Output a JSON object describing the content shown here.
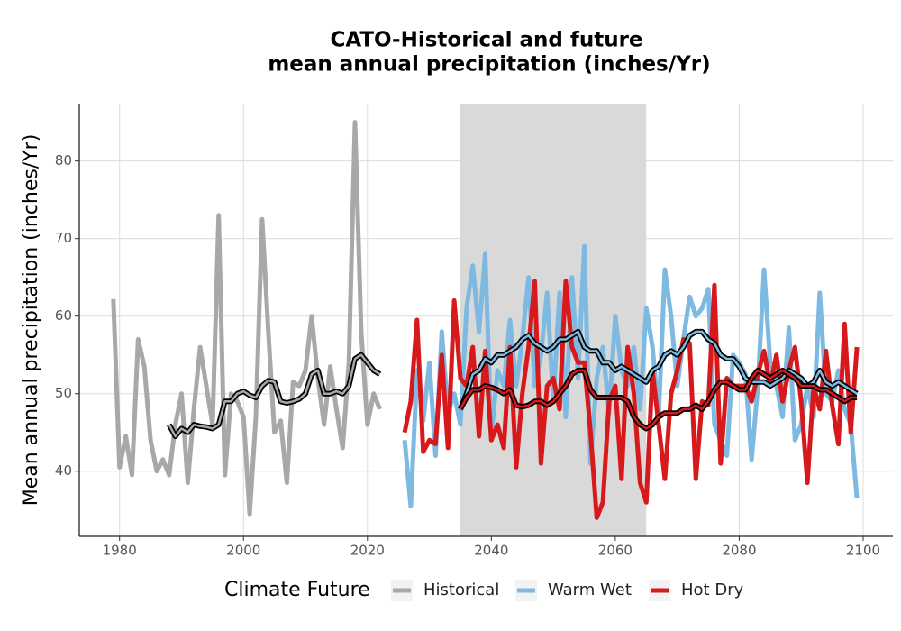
{
  "chart_data": {
    "type": "line",
    "title": [
      "CATO-Historical and future",
      "mean annual precipitation (inches/Yr)"
    ],
    "y_label": "Mean annual precipitation (inches/Yr)",
    "legend_title": "Climate Future",
    "xlim": [
      1973.5,
      2104.8
    ],
    "ylim": [
      31.6,
      87.4
    ],
    "xticks": [
      1980,
      2000,
      2020,
      2040,
      2060,
      2080,
      2100
    ],
    "yticks": [
      40,
      50,
      60,
      70,
      80
    ],
    "grid": true,
    "shade": [
      2035,
      2065
    ],
    "series": [
      {
        "name": "Historical",
        "color": "#a8a8a8",
        "x": [
          1979,
          1980,
          1981,
          1982,
          1983,
          1984,
          1985,
          1986,
          1987,
          1988,
          1989,
          1990,
          1991,
          1992,
          1993,
          1994,
          1995,
          1996,
          1997,
          1998,
          1999,
          2000,
          2001,
          2002,
          2003,
          2004,
          2005,
          2006,
          2007,
          2008,
          2009,
          2010,
          2011,
          2012,
          2013,
          2014,
          2015,
          2016,
          2017,
          2018,
          2019,
          2020,
          2021,
          2022
        ],
        "values": [
          62.2,
          40.5,
          44.5,
          39.5,
          57,
          53.5,
          44,
          40,
          41.5,
          39.5,
          46,
          50,
          38.5,
          48,
          56,
          51,
          46,
          73,
          39.5,
          50,
          49,
          47,
          34.5,
          47,
          72.5,
          58,
          45,
          46.5,
          38.5,
          51.5,
          51,
          53,
          60,
          52,
          46,
          53.5,
          48,
          43,
          54,
          85,
          58,
          46,
          50,
          48
        ],
        "rolling": [
          null,
          null,
          null,
          null,
          null,
          null,
          null,
          null,
          null,
          46,
          44.5,
          45.5,
          45,
          46,
          45.8,
          45.7,
          45.5,
          46,
          49,
          49,
          50,
          50.3,
          49.8,
          49.5,
          51,
          51.7,
          51.5,
          49,
          48.8,
          49,
          49.3,
          50,
          52.5,
          53,
          50,
          50,
          50.3,
          50,
          51,
          54.5,
          55,
          54,
          53,
          52.5
        ]
      },
      {
        "name": "Warm Wet",
        "color": "#7db9e0",
        "x": [
          2026,
          2027,
          2028,
          2029,
          2030,
          2031,
          2032,
          2033,
          2034,
          2035,
          2036,
          2037,
          2038,
          2039,
          2040,
          2041,
          2042,
          2043,
          2044,
          2045,
          2046,
          2047,
          2048,
          2049,
          2050,
          2051,
          2052,
          2053,
          2054,
          2055,
          2056,
          2057,
          2058,
          2059,
          2060,
          2061,
          2062,
          2063,
          2064,
          2065,
          2066,
          2067,
          2068,
          2069,
          2070,
          2071,
          2072,
          2073,
          2074,
          2075,
          2076,
          2077,
          2078,
          2079,
          2080,
          2081,
          2082,
          2083,
          2084,
          2085,
          2086,
          2087,
          2088,
          2089,
          2090,
          2091,
          2092,
          2093,
          2094,
          2095,
          2096,
          2097,
          2098,
          2099
        ],
        "values": [
          44,
          35.5,
          53,
          46.5,
          54,
          42,
          58,
          47.5,
          50,
          46,
          61,
          66.5,
          58,
          68,
          44.5,
          53,
          51,
          59.5,
          51,
          57,
          65,
          51,
          55,
          63,
          49,
          63,
          47,
          65,
          52,
          69,
          41,
          52,
          56,
          47.5,
          60,
          53,
          51,
          56,
          48,
          61,
          56,
          47,
          66,
          60,
          51,
          57,
          62.5,
          60,
          61,
          63.5,
          46,
          44,
          42,
          55,
          54,
          52.5,
          41.5,
          51,
          66,
          54,
          51,
          47,
          58.5,
          44,
          46,
          51,
          47,
          63,
          50,
          49,
          53,
          48,
          46,
          36.5
        ],
        "rolling": [
          null,
          null,
          null,
          null,
          null,
          null,
          null,
          null,
          null,
          48,
          50,
          52.5,
          53,
          54.5,
          54,
          55,
          55,
          55.5,
          56,
          57,
          57.5,
          56.5,
          56,
          55.5,
          56,
          57,
          57,
          57.5,
          58,
          56,
          55.5,
          55.5,
          54,
          54,
          53,
          53.5,
          53,
          52.5,
          52,
          51.5,
          53,
          53.5,
          55,
          55.5,
          55,
          56,
          57.5,
          58,
          58,
          57,
          56.5,
          55,
          54.5,
          54.5,
          53.5,
          52,
          51.5,
          51.5,
          51.5,
          51,
          51.5,
          52,
          53,
          52.5,
          52,
          51,
          51.5,
          53,
          51.5,
          51,
          51.5,
          51,
          50.5,
          50
        ]
      },
      {
        "name": "Hot Dry",
        "color": "#d7191c",
        "x": [
          2026,
          2027,
          2028,
          2029,
          2030,
          2031,
          2032,
          2033,
          2034,
          2035,
          2036,
          2037,
          2038,
          2039,
          2040,
          2041,
          2042,
          2043,
          2044,
          2045,
          2046,
          2047,
          2048,
          2049,
          2050,
          2051,
          2052,
          2053,
          2054,
          2055,
          2056,
          2057,
          2058,
          2059,
          2060,
          2061,
          2062,
          2063,
          2064,
          2065,
          2066,
          2067,
          2068,
          2069,
          2070,
          2071,
          2072,
          2073,
          2074,
          2075,
          2076,
          2077,
          2078,
          2079,
          2080,
          2081,
          2082,
          2083,
          2084,
          2085,
          2086,
          2087,
          2088,
          2089,
          2090,
          2091,
          2092,
          2093,
          2094,
          2095,
          2096,
          2097,
          2098,
          2099
        ],
        "values": [
          45,
          49,
          59.5,
          42.5,
          44,
          43.5,
          55,
          43,
          62,
          52,
          51,
          56,
          44.5,
          55.5,
          44,
          46,
          43,
          56,
          40.5,
          50,
          56,
          64.5,
          41,
          51,
          52,
          48,
          64.5,
          56,
          54,
          54,
          45,
          34,
          36,
          49,
          51,
          39,
          56,
          50,
          38.5,
          36,
          53,
          46,
          39,
          50,
          53,
          57,
          56.5,
          39,
          49,
          48.5,
          64,
          41,
          52,
          51,
          51,
          51,
          49,
          52.5,
          55.5,
          51,
          55,
          49,
          53,
          56,
          49,
          38.5,
          51,
          48,
          55.5,
          48.5,
          43.5,
          59,
          45,
          56
        ],
        "rolling": [
          null,
          null,
          null,
          null,
          null,
          null,
          null,
          null,
          null,
          48,
          49.5,
          50.5,
          50.5,
          51,
          50.8,
          50.5,
          50,
          50.5,
          48.5,
          48.3,
          48.5,
          49,
          49,
          48.5,
          49,
          50,
          51,
          52.5,
          53,
          53,
          50.5,
          49.5,
          49.5,
          49.5,
          49.5,
          49.5,
          49,
          47,
          46,
          45.5,
          46,
          47,
          47.5,
          47.5,
          47.5,
          48,
          48,
          48.5,
          48,
          49,
          50.5,
          51.5,
          51.5,
          51,
          50.5,
          50.5,
          52,
          53,
          52.5,
          52,
          52.5,
          53,
          52.5,
          52,
          51,
          51,
          51,
          50.5,
          50.5,
          50,
          49.5,
          49,
          49.5,
          49.5
        ]
      }
    ]
  }
}
